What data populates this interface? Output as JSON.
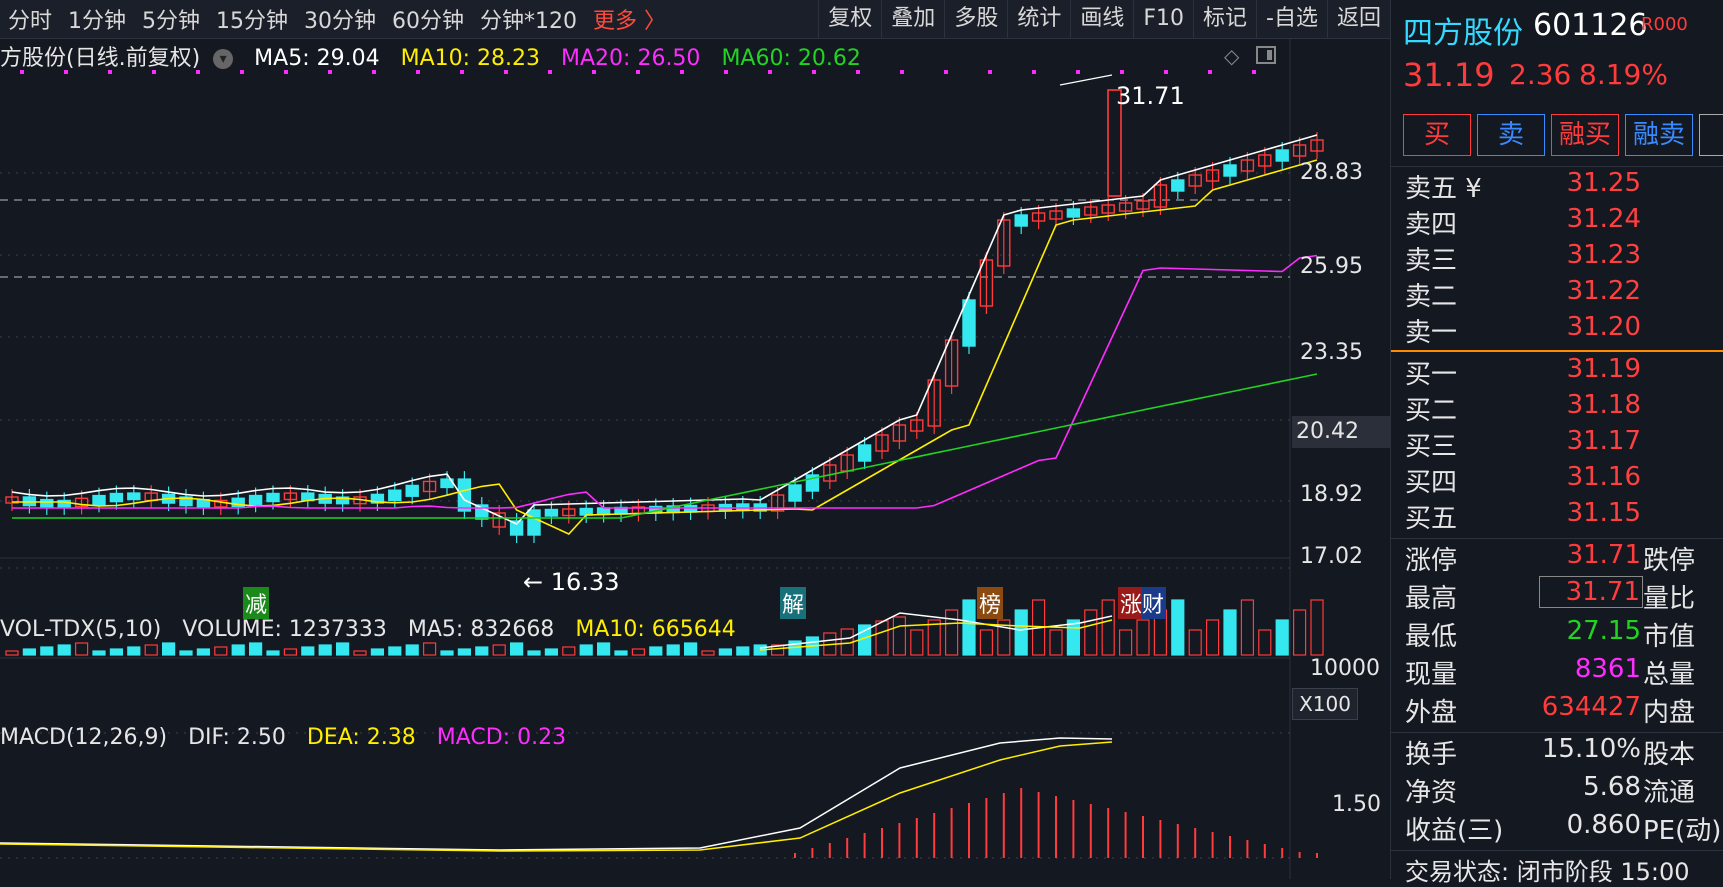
{
  "toolbar": {
    "periods": [
      "分时",
      "1分钟",
      "5分钟",
      "15分钟",
      "30分钟",
      "60分钟",
      "分钟*120"
    ],
    "more": "更多 〉",
    "tools": [
      "复权",
      "叠加",
      "多股",
      "统计",
      "画线",
      "F10",
      "标记",
      "-自选",
      "返回"
    ]
  },
  "main_legend": {
    "title": "方股份(日线.前复权)",
    "ma5": "MA5: 29.04",
    "ma10": "MA10: 28.23",
    "ma20": "MA20: 26.50",
    "ma60": "MA60: 20.62"
  },
  "price_axis": [
    "28.83",
    "25.95",
    "23.35",
    "20.42",
    "18.92",
    "17.02"
  ],
  "annotations": {
    "high_label": "31.71",
    "low_label": "16.33",
    "markers": [
      "减",
      "解",
      "榜",
      "涨财"
    ]
  },
  "vol_legend": {
    "title": "VOL-TDX(5,10)",
    "volume": "VOLUME: 1237333",
    "ma5": "MA5: 832668",
    "ma10": "MA10: 665644"
  },
  "vol_axis": [
    "10000",
    "X100"
  ],
  "macd_legend": {
    "title": "MACD(12,26,9)",
    "dif": "DIF: 2.50",
    "dea": "DEA: 2.38",
    "macd": "MACD: 0.23"
  },
  "macd_axis": [
    "1.50"
  ],
  "stock": {
    "name": "四方股份",
    "code": "601126",
    "tag": "R000",
    "price": "31.19",
    "change": "2.36",
    "change_pct": "8.19%"
  },
  "trade_buttons": [
    "买",
    "卖",
    "融买",
    "融卖"
  ],
  "order_book": {
    "asks": [
      {
        "label": "卖五 ¥",
        "price": "31.25"
      },
      {
        "label": "卖四",
        "price": "31.24"
      },
      {
        "label": "卖三",
        "price": "31.23"
      },
      {
        "label": "卖二",
        "price": "31.22"
      },
      {
        "label": "卖一",
        "price": "31.20"
      }
    ],
    "bids": [
      {
        "label": "买一",
        "price": "31.19"
      },
      {
        "label": "买二",
        "price": "31.18"
      },
      {
        "label": "买三",
        "price": "31.17"
      },
      {
        "label": "买四",
        "price": "31.16"
      },
      {
        "label": "买五",
        "price": "31.15"
      }
    ]
  },
  "stats": [
    {
      "label": "涨停",
      "value": "31.71",
      "right": "跌停"
    },
    {
      "label": "最高",
      "value": "31.71",
      "right": "量比"
    },
    {
      "label": "最低",
      "value": "27.15",
      "right": "市值"
    },
    {
      "label": "现量",
      "value": "8361",
      "right": "总量"
    },
    {
      "label": "外盘",
      "value": "634427",
      "right": "内盘"
    }
  ],
  "stats2": [
    {
      "label": "换手",
      "value": "15.10%",
      "right": "股本"
    },
    {
      "label": "净资",
      "value": "5.68",
      "right": "流通"
    },
    {
      "label": "收益(三)",
      "value": "0.860",
      "right": "PE(动)"
    }
  ],
  "status": "交易状态: 闭市阶段 15:00",
  "colors": {
    "up": "#ff3b3b",
    "down": "#35e8f0",
    "ma5": "#ffffff",
    "ma10": "#ffee00",
    "ma20": "#ff2cff",
    "ma60": "#22d322",
    "accent": "#ff8c00"
  }
}
